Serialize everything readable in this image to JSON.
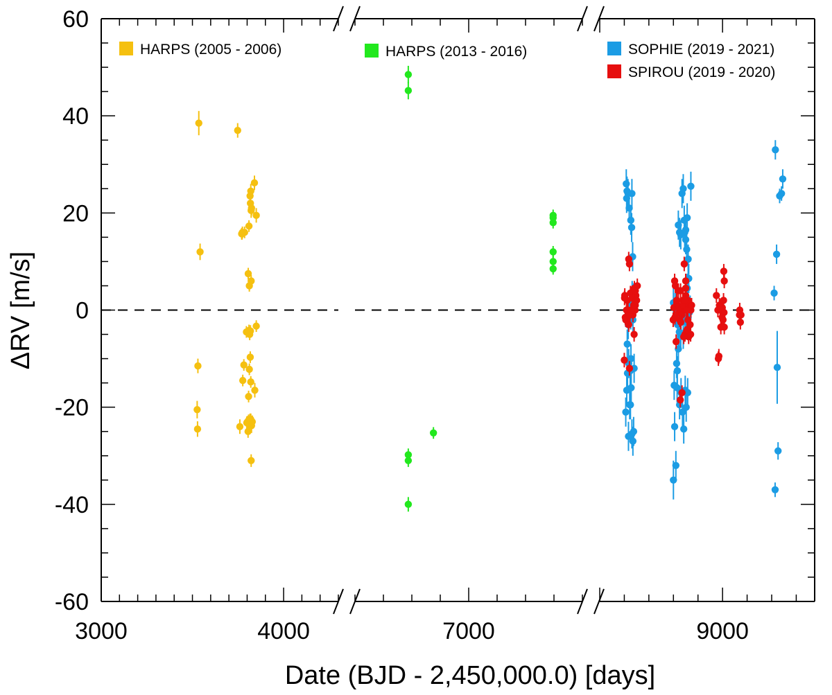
{
  "chart_data": {
    "type": "scatter",
    "xlabel": "Date (BJD - 2,450,000.0) [days]",
    "ylabel": "ΔRV [m/s]",
    "ylim": [
      -60,
      60
    ],
    "y_ticks": [
      "-60",
      "-40",
      "-20",
      "0",
      "20",
      "40",
      "60"
    ],
    "x_axis_broken": true,
    "x_segments": [
      {
        "xlim": [
          3000,
          4300
        ],
        "tick_labels": [
          "3000",
          "4000"
        ]
      },
      {
        "xlim": [
          6200,
          7800
        ],
        "tick_labels": [
          "7000"
        ]
      },
      {
        "xlim": [
          8000,
          9750
        ],
        "tick_labels": [
          "9000"
        ]
      }
    ],
    "reference_line": {
      "y": 0,
      "style": "dashed"
    },
    "legend_position": "top",
    "series": [
      {
        "name": "HARPS (2005 - 2006)",
        "color": "#f5c010",
        "x": [
          3535,
          3542,
          3530,
          3526,
          3528,
          3748,
          3770,
          3782,
          3776,
          3760,
          3798,
          3802,
          3805,
          3808,
          3812,
          3816,
          3820,
          3824,
          3828,
          3812,
          3820,
          3808,
          3814,
          3822,
          3817,
          3850,
          3812,
          3806,
          3824,
          3816,
          3820,
          3840,
          3786,
          3774,
          3810,
          3822,
          3818,
          3850,
          3772,
          3796,
          3810,
          3818,
          3842,
          3822
        ],
        "y": [
          38.5,
          12,
          -11.5,
          -20.5,
          -24.5,
          37,
          15.7,
          -11.3,
          -14.5,
          -24,
          -23.2,
          -23,
          -25,
          -22.7,
          -23.8,
          -22.5,
          -22.5,
          -23.8,
          -23,
          -12.2,
          -14.8,
          -17.8,
          -5,
          6,
          -9.7,
          -3.3,
          5,
          7.5,
          21,
          23.5,
          24.5,
          26.2,
          16,
          16,
          17.3,
          20.5,
          22,
          19.5,
          15.7,
          -4.5,
          -4.2,
          -4.3,
          -16.5,
          -31
        ],
        "err": [
          2.5,
          1.7,
          1.5,
          1.8,
          1.6,
          1.5,
          1.2,
          1.2,
          1.2,
          1.5,
          1.3,
          1.2,
          1.3,
          1.2,
          1.3,
          1.2,
          1.2,
          1.5,
          1.3,
          1.2,
          1.2,
          1.2,
          1.2,
          1.2,
          1.2,
          1.2,
          1.2,
          1.2,
          1.5,
          1.5,
          1.5,
          1.5,
          1.2,
          1.2,
          1.2,
          1.5,
          1.5,
          1.5,
          1.2,
          1.2,
          1.2,
          1.2,
          1.5,
          1.3
        ]
      },
      {
        "name": "HARPS (2013 - 2016)",
        "color": "#22e81e",
        "x": [
          6575,
          6575,
          6575,
          6575,
          6575,
          6752,
          7594,
          7594,
          7594,
          7594,
          7594,
          7594
        ],
        "y": [
          48.5,
          45.2,
          -29.8,
          -31,
          -40,
          -25.3,
          19,
          18,
          12,
          10,
          8.5,
          19.5
        ],
        "err": [
          1.8,
          1.8,
          1.3,
          1.3,
          1.5,
          1.2,
          1.2,
          1.2,
          1.2,
          1.2,
          1.2,
          1.2
        ]
      },
      {
        "name": "SOPHIE (2019 - 2021)",
        "color": "#1b9ce4",
        "x": [
          8216,
          8219,
          8222,
          8230,
          8240,
          8253,
          8260,
          8262,
          8268,
          8276,
          8282,
          8212,
          8220,
          8226,
          8234,
          8244,
          8250,
          8256,
          8262,
          8270,
          8276,
          8280,
          8224,
          8232,
          8246,
          8252,
          8258,
          8264,
          8270,
          8236,
          8248,
          8254,
          8610,
          8620,
          8626,
          8632,
          8640,
          8650,
          8660,
          8670,
          8680,
          8688,
          8692,
          8700,
          8708,
          8712,
          8720,
          8724,
          8730,
          8742,
          8600,
          8606,
          8630,
          8640,
          8650,
          8662,
          8674,
          8684,
          8696,
          8704,
          8716,
          8600,
          8614,
          8634,
          8648,
          8662,
          8680,
          8694,
          8706,
          8720,
          8736,
          8660,
          8700,
          8712,
          8724,
          9420,
          9445,
          9465,
          9490,
          9428,
          9452,
          9440,
          9480,
          9430
        ],
        "y": [
          26,
          23,
          24.5,
          24,
          21,
          18.5,
          17,
          24,
          11,
          2.5,
          0.5,
          -21,
          -16.5,
          -13,
          -26,
          -19.5,
          -19.5,
          -16,
          -25.5,
          -27,
          -25,
          -12,
          -7,
          -3,
          0.5,
          -1,
          1.5,
          3,
          -2,
          -11,
          -12.5,
          -10,
          -24,
          -32,
          -11,
          -12.5,
          17.5,
          16,
          15.5,
          24,
          25,
          18.5,
          16,
          14.5,
          12.5,
          4.5,
          10.5,
          6.5,
          -0.5,
          25.5,
          -35,
          -15.5,
          -16,
          -8,
          -19.5,
          -17,
          -21,
          -24.5,
          -16.5,
          -20,
          -17,
          1.5,
          0.5,
          -3,
          -4.5,
          -1.5,
          -5,
          -2,
          -2.5,
          -1.5,
          0,
          -5,
          16.5,
          19,
          6.5,
          3.5,
          -11.8,
          23.5,
          27,
          -37,
          -29,
          11.5,
          24,
          33
        ],
        "err": [
          3,
          3,
          3,
          3,
          3,
          3,
          3,
          3,
          3,
          3,
          3,
          3,
          3,
          3,
          3,
          3,
          3,
          3,
          3,
          3,
          3,
          3,
          3,
          3,
          3,
          3,
          3,
          3,
          3,
          3,
          3,
          3,
          3,
          3,
          3,
          3,
          3,
          3,
          3,
          3,
          3,
          3,
          3,
          3,
          3,
          3,
          3,
          3,
          3,
          3,
          4,
          3,
          3,
          3,
          3,
          3,
          3,
          3,
          3,
          3,
          3,
          3,
          3,
          3,
          3,
          3,
          3,
          3,
          3,
          3,
          3,
          3,
          3,
          3,
          3,
          1.5,
          7.5,
          1.5,
          2,
          1.5,
          1.8,
          2,
          1.5,
          2
        ]
      },
      {
        "name": "SPIROU (2019 - 2020)",
        "color": "#e60f0f",
        "x": [
          8200,
          8204,
          8208,
          8212,
          8218,
          8224,
          8230,
          8236,
          8242,
          8250,
          8258,
          8264,
          8270,
          8276,
          8282,
          8288,
          8294,
          8300,
          8306,
          8236,
          8242,
          8246,
          8260,
          8280,
          8290,
          8202,
          8290,
          8598,
          8604,
          8610,
          8616,
          8622,
          8628,
          8634,
          8640,
          8646,
          8652,
          8658,
          8664,
          8670,
          8676,
          8682,
          8688,
          8694,
          8700,
          8706,
          8712,
          8718,
          8724,
          8730,
          8736,
          8742,
          8748,
          8670,
          8656,
          8700,
          8710,
          8718,
          8740,
          8612,
          8626,
          8660,
          8700,
          8684,
          8690,
          8950,
          8962,
          8974,
          8986,
          8998,
          9010,
          9014,
          8970,
          8966,
          9008,
          9004,
          9012,
          9014,
          8996,
          8980,
          9145,
          9150,
          9140,
          9138
        ],
        "y": [
          -10.3,
          3,
          -1.5,
          -2,
          0,
          2,
          0,
          10.5,
          9.5,
          3.5,
          0,
          2.5,
          -1,
          1,
          4.5,
          0,
          3,
          2,
          5,
          -3,
          -12,
          -1,
          0,
          -5,
          4,
          2.5,
          1,
          -2,
          0.5,
          6,
          5,
          -6.5,
          2,
          1,
          4,
          -0.5,
          -2,
          4,
          0,
          -1,
          2,
          1,
          9.5,
          -5,
          3,
          0,
          -4,
          -2,
          -5.5,
          1,
          -3,
          0,
          1,
          -17,
          -18.5,
          4.5,
          0,
          2,
          -5,
          -1.5,
          2,
          -2.5,
          6,
          -5.5,
          2,
          3,
          0,
          1,
          -3.5,
          0.5,
          8,
          6,
          -9.5,
          -10,
          2,
          -2,
          -0.5,
          -3.5,
          -1.5,
          0.5,
          -2.5,
          -1,
          0,
          -1
        ],
        "err": [
          1.5,
          1.5,
          1.5,
          1.5,
          1.5,
          1.5,
          1.5,
          1.5,
          1.5,
          1.5,
          1.5,
          1.5,
          1.5,
          1.5,
          1.5,
          1.5,
          1.5,
          1.5,
          1.5,
          1.5,
          1.5,
          1.5,
          1.5,
          1.5,
          1.5,
          1.5,
          1.5,
          1.5,
          1.5,
          1.5,
          1.5,
          1.5,
          1.5,
          1.5,
          1.5,
          1.5,
          1.5,
          1.5,
          1.5,
          1.5,
          1.5,
          1.5,
          1.5,
          1.5,
          1.5,
          1.5,
          1.5,
          1.5,
          1.5,
          1.5,
          1.5,
          1.5,
          1.5,
          1.5,
          1.5,
          1.5,
          1.5,
          1.5,
          1.5,
          1.5,
          1.5,
          1.5,
          1.5,
          1.5,
          1.5,
          1.5,
          1.5,
          1.5,
          1.5,
          1.5,
          1.5,
          1.5,
          1.5,
          1.5,
          1.5,
          1.5,
          1.5,
          1.5,
          1.5,
          1.5,
          1.5,
          1.5,
          1.5,
          1.5
        ]
      }
    ]
  }
}
